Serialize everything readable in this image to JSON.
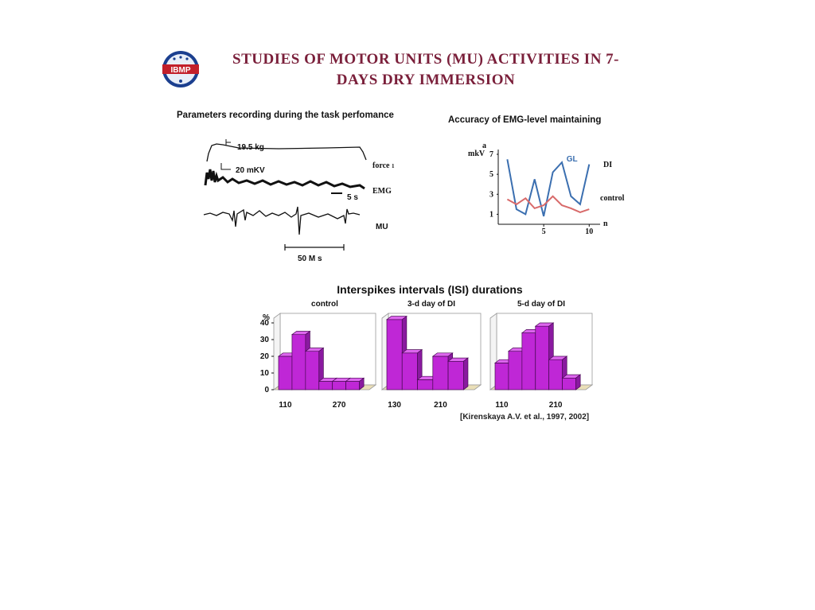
{
  "slide": {
    "title_line1": "STUDIES OF MOTOR UNITS (MU) ACTIVITIES IN 7-",
    "title_line2": "DAYS DRY IMMERSION",
    "logo_text": "IBMP"
  },
  "recording": {
    "heading": "Parameters recording during the task perfomance",
    "force_scale": "19.5 kg",
    "emg_scale": "20 mKV",
    "time_scale_1": "5 s",
    "time_scale_2": "50 M s",
    "label_force": "force",
    "label_force_sub": "1",
    "label_emg": "EMG",
    "label_mu": "MU"
  },
  "histograms": {
    "title": "Interspikes intervals (ISI) durations"
  },
  "citation": "[Kirenskaya A.V. et al., 1997, 2002]",
  "colors": {
    "title": "#7a1f3a",
    "bar_front": "#bf27d6",
    "bar_top": "#dd66ee",
    "bar_side": "#8a1aa0",
    "gl_line": "#3b6fb0",
    "control_line": "#d86a6a"
  },
  "chart_data": [
    {
      "type": "line",
      "title": "Accuracy of EMG-level maintaining",
      "ylabel": "mkV",
      "ylabel_sup": "a",
      "xlabel": "n",
      "ylim": [
        0,
        7
      ],
      "xlim": [
        0,
        10.5
      ],
      "yticks": [
        1,
        3,
        5,
        7
      ],
      "xticks": [
        5,
        10
      ],
      "panel_label": "DI",
      "series": [
        {
          "name": "GL",
          "x": [
            1,
            2,
            3,
            4,
            5,
            6,
            7,
            8,
            9,
            10
          ],
          "y": [
            6.5,
            1.5,
            1.0,
            4.5,
            0.8,
            5.2,
            6.2,
            2.8,
            2.0,
            6.0
          ]
        },
        {
          "name": "control",
          "x": [
            1,
            2,
            3,
            4,
            5,
            6,
            7,
            8,
            9,
            10
          ],
          "y": [
            2.5,
            2.0,
            2.6,
            1.6,
            1.9,
            2.8,
            1.9,
            1.6,
            1.2,
            1.5
          ]
        }
      ]
    },
    {
      "type": "bar",
      "title": "control",
      "ylabel": "%",
      "ylim": [
        0,
        40
      ],
      "yticks": [
        0,
        10,
        20,
        30,
        40
      ],
      "categories": [
        "110",
        "",
        "",
        "",
        "270",
        ""
      ],
      "values": [
        20,
        33,
        23,
        5,
        5,
        5
      ]
    },
    {
      "type": "bar",
      "title": "3-d day of DI",
      "ylim": [
        0,
        40
      ],
      "categories": [
        "130",
        "",
        "",
        "210",
        ""
      ],
      "values": [
        42,
        22,
        6,
        20,
        17
      ]
    },
    {
      "type": "bar",
      "title": "5-d day of DI",
      "ylim": [
        0,
        40
      ],
      "categories": [
        "110",
        "",
        "",
        "",
        "210",
        ""
      ],
      "values": [
        16,
        23,
        34,
        38,
        18,
        7
      ]
    }
  ]
}
